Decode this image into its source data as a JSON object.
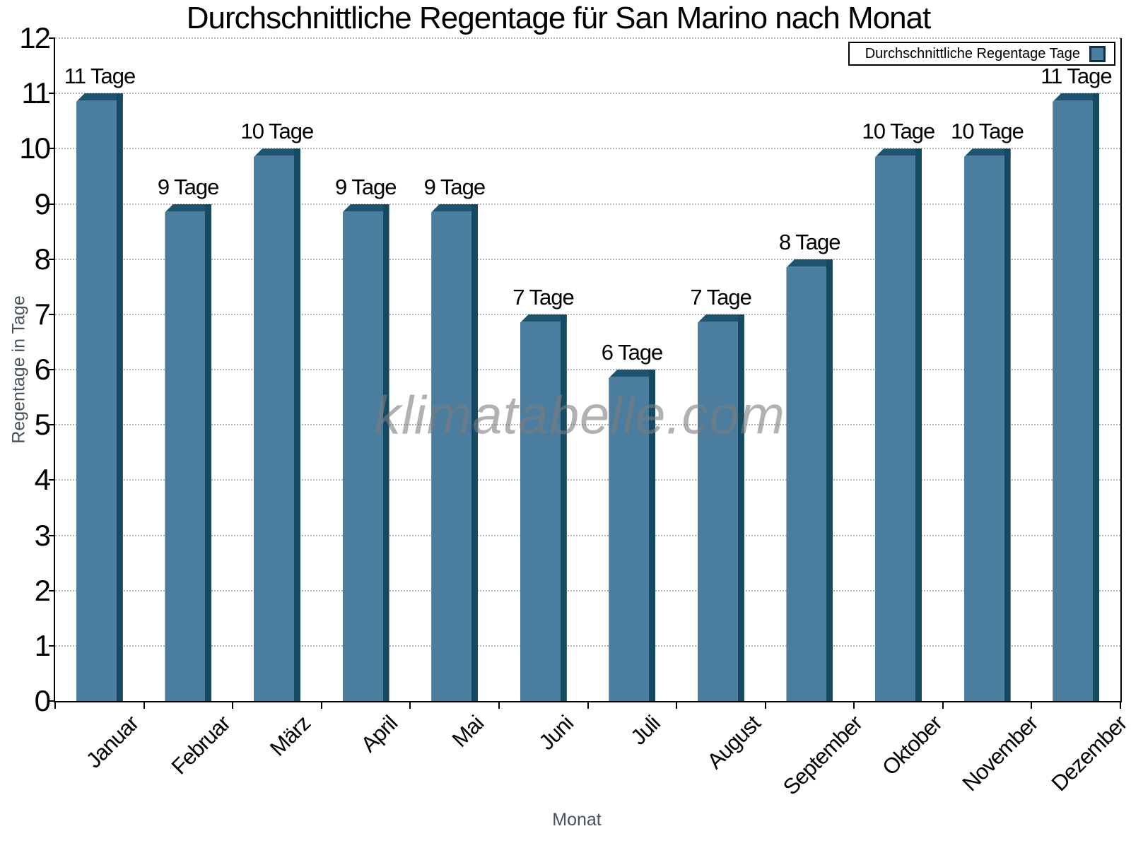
{
  "watermark": "klimatabelle.com",
  "legend": {
    "label": "Durchschnittliche Regentage Tage"
  },
  "axes": {
    "x_label": "Monat",
    "y_label": "Regentage in Tage"
  },
  "chart_data": {
    "type": "bar",
    "title": "Durchschnittliche Regentage für San Marino nach Monat",
    "categories": [
      "Januar",
      "Februar",
      "März",
      "April",
      "Mai",
      "Juni",
      "Juli",
      "August",
      "September",
      "Oktober",
      "November",
      "Dezember"
    ],
    "values": [
      11,
      9,
      10,
      9,
      9,
      7,
      6,
      7,
      8,
      10,
      10,
      11
    ],
    "bar_labels": [
      "11 Tage",
      "9 Tage",
      "10 Tage",
      "9 Tage",
      "9 Tage",
      "7 Tage",
      "6 Tage",
      "7 Tage",
      "8 Tage",
      "10 Tage",
      "10 Tage",
      "11 Tage"
    ],
    "xlabel": "Monat",
    "ylabel": "Regentage in Tage",
    "ylim": [
      0,
      12
    ],
    "y_ticks": [
      0,
      1,
      2,
      3,
      4,
      5,
      6,
      7,
      8,
      9,
      10,
      11,
      12
    ],
    "legend": "Durchschnittliche Regentage Tage",
    "legend_position": "top-right",
    "grid": "horizontal-dotted",
    "colors": {
      "bar_face": "#4a7d9e",
      "bar_top_edge": "#1d5470",
      "bar_right_edge": "#164a63",
      "grid": "#b3b3b3",
      "axis": "#000000",
      "axis_title_text": "#47525a",
      "watermark": "#7d7d7d"
    }
  }
}
